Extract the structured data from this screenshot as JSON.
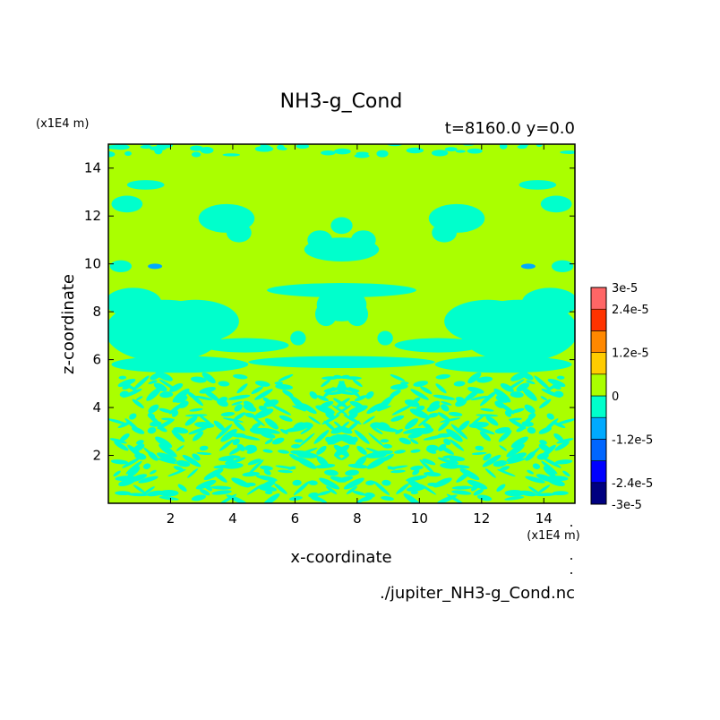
{
  "chart_data": {
    "type": "heatmap",
    "title": "NH3-g_Cond",
    "subtitle": "t=8160.0 y=0.0",
    "xlabel": "x-coordinate",
    "ylabel": "z-coordinate",
    "x_unit": "(x1E4 m)",
    "y_unit": "(x1E4 m)",
    "xlim": [
      0,
      15
    ],
    "ylim": [
      0,
      15
    ],
    "x_ticks": [
      "2",
      "4",
      "6",
      "8",
      "10",
      "12",
      "14"
    ],
    "y_ticks": [
      "2",
      "4",
      "6",
      "8",
      "10",
      "12",
      "14"
    ],
    "source_file": "./jupiter_NH3-g_Cond.nc",
    "colorbar": {
      "levels": [
        -3e-05,
        -2.4e-05,
        -1.8e-05,
        -1.2e-05,
        -6e-06,
        0,
        6e-06,
        1.2e-05,
        1.8e-05,
        2.4e-05,
        3e-05
      ],
      "colors": [
        "#000080",
        "#0000ff",
        "#0066ff",
        "#00aaff",
        "#00ffcc",
        "#aaff00",
        "#ffcc00",
        "#ff8800",
        "#ff3300",
        "#ff6666"
      ],
      "tick_labels": [
        "3e-5",
        "2.4e-5",
        "1.2e-5",
        "0",
        "-1.2e-5",
        "-2.4e-5",
        "-3e-5"
      ]
    },
    "field_description": {
      "background_value": 0,
      "negative_value": -6e-06,
      "layers": [
        {
          "z_range": [
            0,
            5.5
          ],
          "pattern": "turbulent mix of 0 and -6e-6"
        },
        {
          "z_range": [
            5.5,
            9.5
          ],
          "pattern": "mostly -6e-6 bands at sides, 0 in center"
        },
        {
          "z_range": [
            9.5,
            15
          ],
          "pattern": "mostly 0 with isolated -6e-6 patches"
        }
      ]
    }
  }
}
